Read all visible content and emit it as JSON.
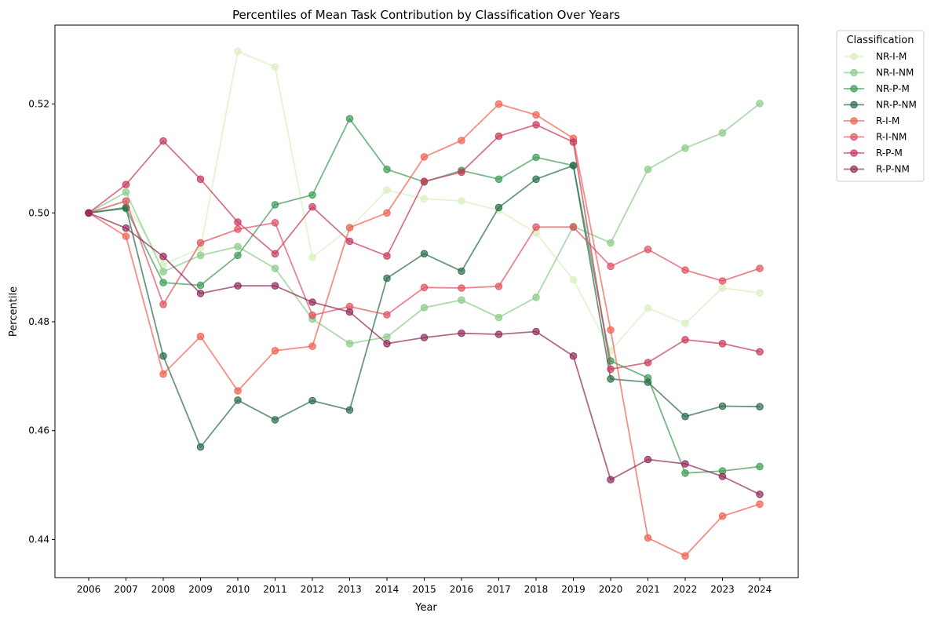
{
  "chart_data": {
    "type": "line",
    "title": "Percentiles of Mean Task Contribution by Classification Over Years",
    "xlabel": "Year",
    "ylabel": "Percentile",
    "x": [
      2006,
      2007,
      2008,
      2009,
      2010,
      2011,
      2012,
      2013,
      2014,
      2015,
      2016,
      2017,
      2018,
      2019,
      2020,
      2021,
      2022,
      2023,
      2024
    ],
    "ylim": [
      0.433,
      0.5345
    ],
    "yticks": [
      0.44,
      0.46,
      0.48,
      0.5,
      0.52
    ],
    "ytick_labels": [
      "0.44",
      "0.46",
      "0.48",
      "0.50",
      "0.52"
    ],
    "legend": {
      "title": "Classification",
      "placement": "outside-top-right"
    },
    "series": [
      {
        "name": "NR-I-M",
        "color": "#d9f0c0",
        "values": [
          0.5,
          0.502,
          0.4905,
          0.4935,
          0.5297,
          0.5268,
          0.4918,
          0.4972,
          0.5042,
          0.5026,
          0.5022,
          0.5005,
          0.4963,
          0.4877,
          0.4747,
          0.4825,
          0.4797,
          0.4862,
          0.4853
        ]
      },
      {
        "name": "NR-I-NM",
        "color": "#88cc88",
        "values": [
          0.5,
          0.5038,
          0.4892,
          0.4922,
          0.4938,
          0.4898,
          0.4805,
          0.476,
          0.4772,
          0.4826,
          0.484,
          0.4808,
          0.4845,
          0.4975,
          0.4945,
          0.508,
          0.5119,
          0.5147,
          0.5201
        ]
      },
      {
        "name": "NR-P-M",
        "color": "#3d9a55",
        "values": [
          0.5,
          0.5008,
          0.4872,
          0.4867,
          0.4922,
          0.5015,
          0.5033,
          0.5173,
          0.508,
          0.5057,
          0.5078,
          0.5062,
          0.5102,
          0.5087,
          0.4728,
          0.4697,
          0.4522,
          0.4526,
          0.4534
        ]
      },
      {
        "name": "NR-P-NM",
        "color": "#2a6b4a",
        "values": [
          0.5,
          0.501,
          0.4737,
          0.457,
          0.4656,
          0.462,
          0.4655,
          0.4638,
          0.488,
          0.4925,
          0.4893,
          0.501,
          0.5062,
          0.5087,
          0.4695,
          0.4689,
          0.4626,
          0.4645,
          0.4644
        ]
      },
      {
        "name": "R-I-M",
        "color": "#f06050",
        "values": [
          0.5,
          0.4957,
          0.4704,
          0.4773,
          0.4673,
          0.4747,
          0.4755,
          0.4973,
          0.5,
          0.5103,
          0.5133,
          0.52,
          0.518,
          0.5137,
          0.4785,
          0.4403,
          0.437,
          0.4443,
          0.4465
        ]
      },
      {
        "name": "R-I-NM",
        "color": "#e05060",
        "values": [
          0.5,
          0.5022,
          0.4832,
          0.4945,
          0.497,
          0.4982,
          0.4812,
          0.4828,
          0.4813,
          0.4863,
          0.4862,
          0.4865,
          0.4974,
          0.4974,
          0.4902,
          0.4933,
          0.4895,
          0.4875,
          0.4898
        ]
      },
      {
        "name": "R-P-M",
        "color": "#c83858",
        "values": [
          0.5,
          0.5052,
          0.5132,
          0.5062,
          0.4983,
          0.4925,
          0.5011,
          0.4948,
          0.4921,
          0.5058,
          0.5075,
          0.5141,
          0.5162,
          0.513,
          0.4713,
          0.4725,
          0.4767,
          0.476,
          0.4745
        ]
      },
      {
        "name": "R-P-NM",
        "color": "#902858",
        "values": [
          0.5,
          0.4972,
          0.492,
          0.4852,
          0.4866,
          0.4866,
          0.4836,
          0.4818,
          0.476,
          0.4771,
          0.4779,
          0.4777,
          0.4782,
          0.4737,
          0.451,
          0.4547,
          0.4539,
          0.4516,
          0.4483
        ]
      }
    ]
  }
}
